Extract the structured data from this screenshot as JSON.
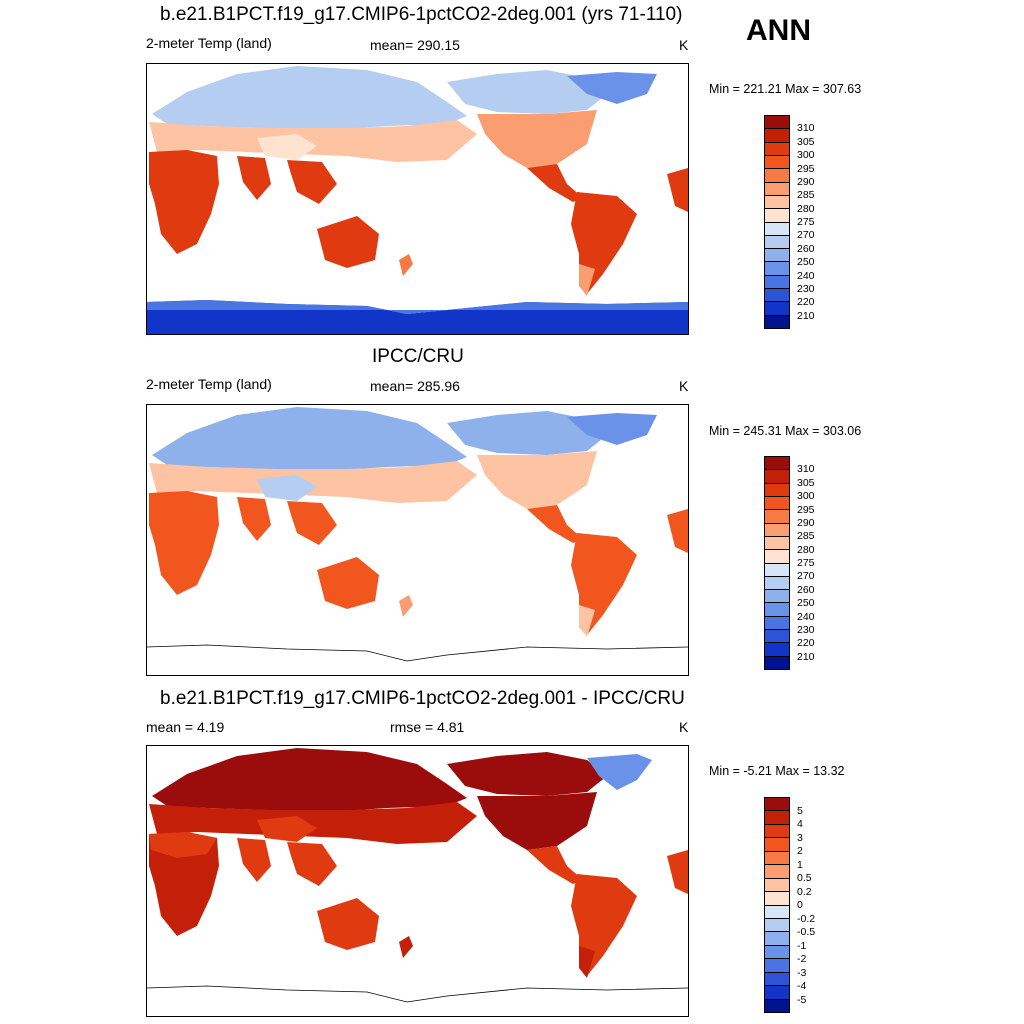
{
  "season": "ANN",
  "panels": [
    {
      "title": "b.e21.B1PCT.f19_g17.CMIP6-1pctCO2-2deg.001 (yrs 71-110)",
      "left_label": "2-meter Temp (land)",
      "center_label": "mean= 290.15",
      "units": "K",
      "minmax": "Min = 221.21 Max = 307.63"
    },
    {
      "title": "IPCC/CRU",
      "left_label": "2-meter Temp (land)",
      "center_label": "mean= 285.96",
      "units": "K",
      "minmax": "Min = 245.31 Max = 303.06"
    },
    {
      "title": "b.e21.B1PCT.f19_g17.CMIP6-1pctCO2-2deg.001 - IPCC/CRU",
      "left_label": "mean =   4.19",
      "center_label": "rmse =   4.81",
      "units": "K",
      "minmax": "Min =  -5.21 Max =  13.32"
    }
  ],
  "chart_data": [
    {
      "type": "heatmap",
      "title": "b.e21.B1PCT.f19_g17.CMIP6-1pctCO2-2deg.001 (yrs 71-110)",
      "variable": "2-meter Temp (land)",
      "units": "K",
      "mean": 290.15,
      "min": 221.21,
      "max": 307.63,
      "colorbar_levels": [
        "310",
        "305",
        "300",
        "295",
        "290",
        "285",
        "280",
        "275",
        "270",
        "260",
        "250",
        "240",
        "230",
        "220",
        "210"
      ],
      "colorbar_colors": [
        "#9b0d0d",
        "#c41f08",
        "#e03a10",
        "#f0561e",
        "#f77a45",
        "#fa9e72",
        "#fdc3a2",
        "#fde3d0",
        "#d7e6f7",
        "#b4cdf0",
        "#8eb1ec",
        "#6a92e8",
        "#4a73e3",
        "#2b55d6",
        "#1035c8",
        "#00138f"
      ]
    },
    {
      "type": "heatmap",
      "title": "IPCC/CRU",
      "variable": "2-meter Temp (land)",
      "units": "K",
      "mean": 285.96,
      "min": 245.31,
      "max": 303.06,
      "colorbar_levels": [
        "310",
        "305",
        "300",
        "295",
        "290",
        "285",
        "280",
        "275",
        "270",
        "260",
        "250",
        "240",
        "230",
        "220",
        "210"
      ],
      "colorbar_colors": [
        "#9b0d0d",
        "#c41f08",
        "#e03a10",
        "#f0561e",
        "#f77a45",
        "#fa9e72",
        "#fdc3a2",
        "#fde3d0",
        "#d7e6f7",
        "#b4cdf0",
        "#8eb1ec",
        "#6a92e8",
        "#4a73e3",
        "#2b55d6",
        "#1035c8",
        "#00138f"
      ]
    },
    {
      "type": "heatmap",
      "title": "b.e21.B1PCT.f19_g17.CMIP6-1pctCO2-2deg.001 - IPCC/CRU",
      "units": "K",
      "mean": 4.19,
      "rmse": 4.81,
      "min": -5.21,
      "max": 13.32,
      "colorbar_levels": [
        "5",
        "4",
        "3",
        "2",
        "1",
        "0.5",
        "0.2",
        "0",
        "-0.2",
        "-0.5",
        "-1",
        "-2",
        "-3",
        "-4",
        "-5"
      ],
      "colorbar_colors": [
        "#9b0d0d",
        "#c41f08",
        "#e03a10",
        "#f0561e",
        "#f77a45",
        "#fa9e72",
        "#fdc3a2",
        "#fde3d0",
        "#d7e6f7",
        "#b4cdf0",
        "#8eb1ec",
        "#6a92e8",
        "#4a73e3",
        "#2b55d6",
        "#1035c8",
        "#00138f"
      ]
    }
  ]
}
